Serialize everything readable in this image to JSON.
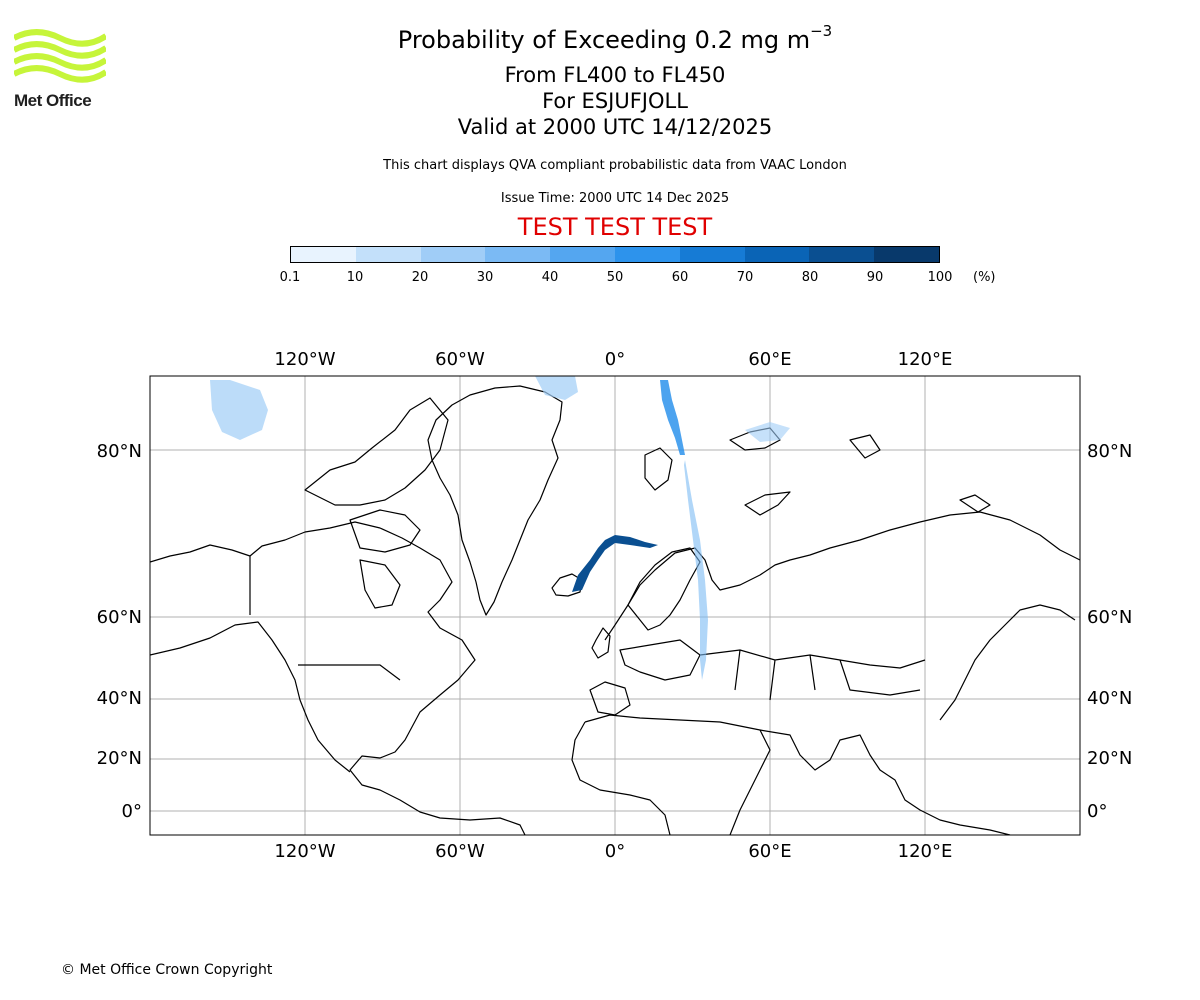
{
  "header": {
    "title_prefix": "Probability of Exceeding 0.2 mg m",
    "title_exponent": "−3",
    "flight_levels": "From FL400 to FL450",
    "for_line": "For ESJUFJOLL",
    "valid_line": "Valid at 2000 UTC 14/12/2025",
    "description": "This chart displays QVA compliant probabilistic data from VAAC London",
    "issue_time": "Issue Time: 2000 UTC 14 Dec 2025",
    "test_banner": "TEST TEST TEST"
  },
  "logo": {
    "text": "Met Office",
    "color": "#c6f53a"
  },
  "colorbar": {
    "ticks": [
      "0.1",
      "10",
      "20",
      "30",
      "40",
      "50",
      "60",
      "70",
      "80",
      "90",
      "100"
    ],
    "unit": "(%)",
    "colors": [
      "#e8f3fe",
      "#c3e0fa",
      "#a0cdf7",
      "#7bbaf4",
      "#54a6f0",
      "#2d93ec",
      "#167bd5",
      "#0a64b6",
      "#0a4f91",
      "#08396b"
    ]
  },
  "map": {
    "longitude_labels": [
      "120°W",
      "60°W",
      "0°",
      "60°E",
      "120°E"
    ],
    "latitude_labels": [
      "80°N",
      "60°N",
      "40°N",
      "20°N",
      "0°"
    ],
    "plume_color": "#0a4f91",
    "light_plume_color": "#5aa8ee"
  },
  "footer": {
    "copyright": "© Met Office Crown Copyright"
  }
}
